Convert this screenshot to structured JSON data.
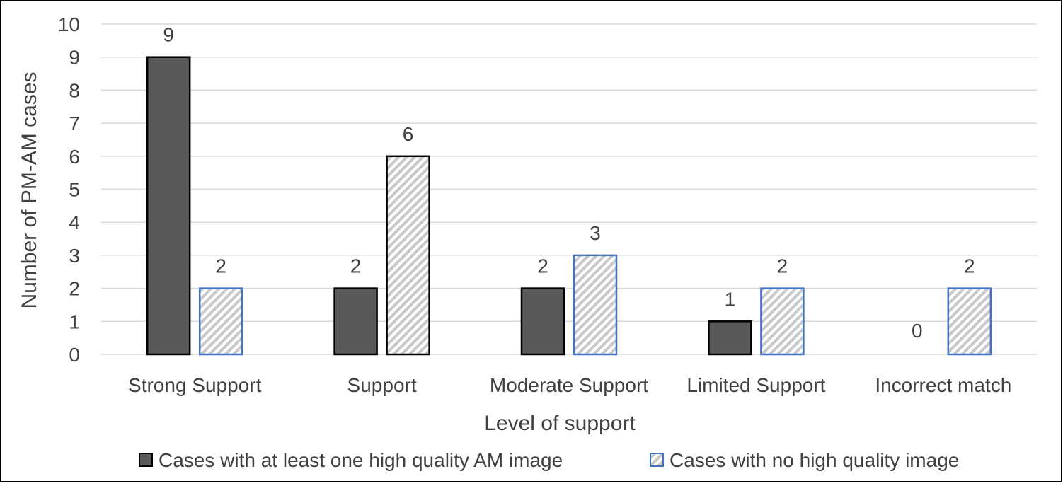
{
  "chart_data": {
    "type": "bar",
    "title": "",
    "xlabel": "Level of support",
    "ylabel": "Number of PM-AM cases",
    "categories": [
      "Strong Support",
      "Support",
      "Moderate Support",
      "Limited Support",
      "Incorrect match"
    ],
    "series": [
      {
        "name": "Cases with at least one high quality AM image",
        "values": [
          9,
          2,
          2,
          1,
          0
        ],
        "fill": "#595959",
        "stroke": "#000000",
        "pattern": "solid"
      },
      {
        "name": "Cases with no high quality image",
        "values": [
          2,
          6,
          3,
          2,
          2
        ],
        "fill": "#c8c8c8",
        "stroke": "#4472c4",
        "stroke_alt": "#000000",
        "pattern": "diagonal-hatch"
      }
    ],
    "ylim": [
      0,
      10
    ],
    "yticks": [
      0,
      1,
      2,
      3,
      4,
      5,
      6,
      7,
      8,
      9,
      10
    ],
    "grid": true,
    "data_labels": true,
    "legend_position": "bottom"
  }
}
